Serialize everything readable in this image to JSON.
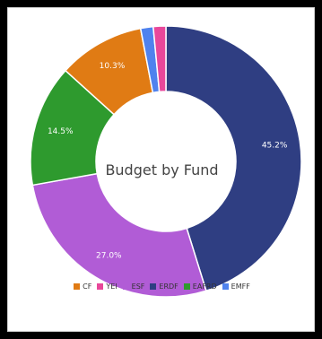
{
  "chart_data": {
    "type": "pie",
    "title": "Budget by Fund",
    "legend_position": "bottom",
    "labels": [
      "ERDF",
      "ESF",
      "EAFRD",
      "CF",
      "EMFF",
      "YEI"
    ],
    "values": [
      45.2,
      27.0,
      14.5,
      10.3,
      1.5,
      1.5
    ],
    "slice_labels": [
      "45.2%",
      "27.0%",
      "14.5%",
      "10.3%",
      "",
      ""
    ],
    "colors": [
      "#2f3e82",
      "#b15cd6",
      "#2e9a2e",
      "#e07b14",
      "#4f82ee",
      "#e8479a"
    ]
  },
  "legend": [
    {
      "label": "CF",
      "color": "#e07b14"
    },
    {
      "label": "YEI",
      "color": "#e8479a"
    },
    {
      "label": "ESF",
      "color": "#b15cd6"
    },
    {
      "label": "ERDF",
      "color": "#2f3e82"
    },
    {
      "label": "EAFRD",
      "color": "#2e9a2e"
    },
    {
      "label": "EMFF",
      "color": "#4f82ee"
    }
  ]
}
